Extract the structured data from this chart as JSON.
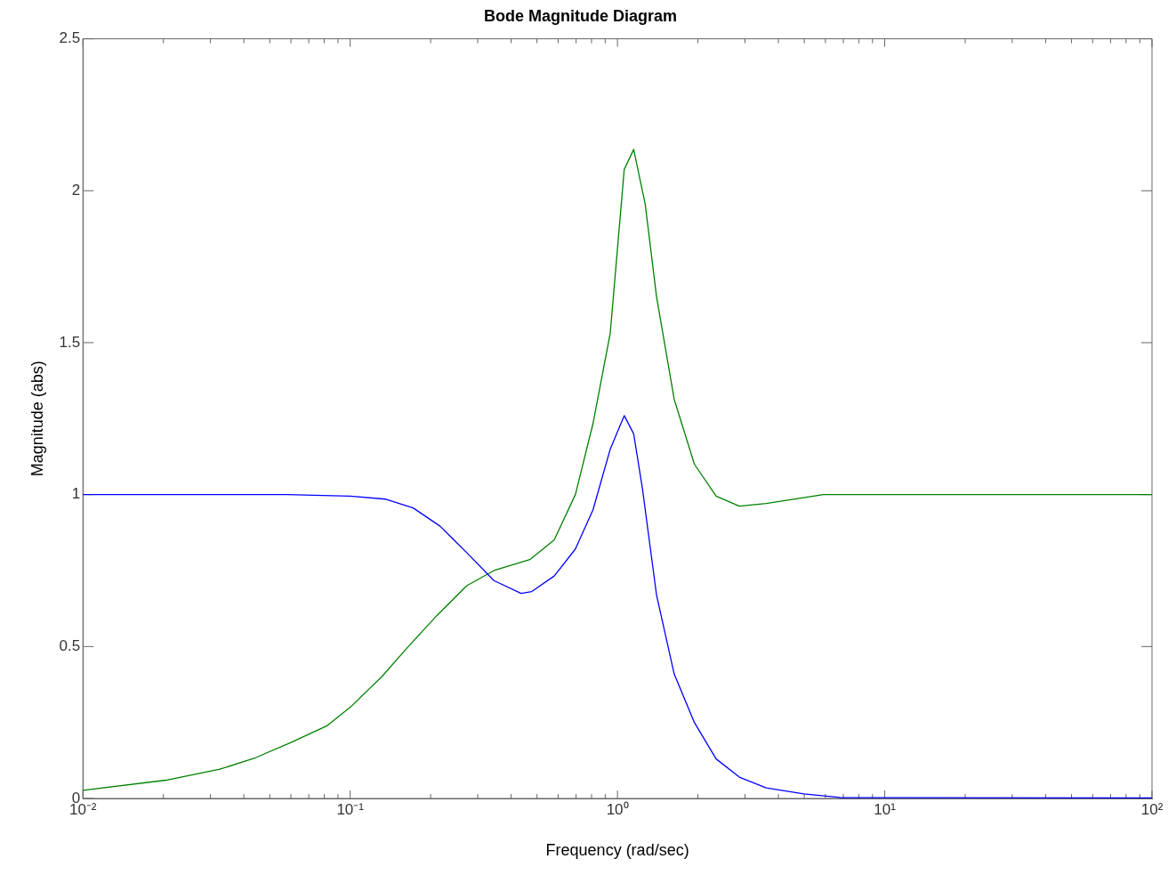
{
  "chart_data": {
    "type": "line",
    "title": "Bode Magnitude Diagram",
    "xlabel": "Frequency (rad/sec)",
    "ylabel": "Magnitude (abs)",
    "log": "x",
    "grid": false,
    "legend": false,
    "marker": "none",
    "line_style": "solid",
    "xlim": [
      0.01,
      100
    ],
    "xticks": [
      {
        "value": 0.01,
        "label": "10⁻²"
      },
      {
        "value": 0.02,
        "label": null
      },
      {
        "value": 0.03,
        "label": null
      },
      {
        "value": 0.04,
        "label": null
      },
      {
        "value": 0.05,
        "label": null
      },
      {
        "value": 0.06,
        "label": null
      },
      {
        "value": 0.07,
        "label": null
      },
      {
        "value": 0.08,
        "label": null
      },
      {
        "value": 0.09,
        "label": null
      },
      {
        "value": 0.1,
        "label": "10⁻¹"
      },
      {
        "value": 0.2,
        "label": null
      },
      {
        "value": 0.3,
        "label": null
      },
      {
        "value": 0.4,
        "label": null
      },
      {
        "value": 0.5,
        "label": null
      },
      {
        "value": 0.6,
        "label": null
      },
      {
        "value": 0.7,
        "label": null
      },
      {
        "value": 0.8,
        "label": null
      },
      {
        "value": 0.9,
        "label": null
      },
      {
        "value": 1,
        "label": "10⁰"
      },
      {
        "value": 2,
        "label": null
      },
      {
        "value": 3,
        "label": null
      },
      {
        "value": 4,
        "label": null
      },
      {
        "value": 5,
        "label": null
      },
      {
        "value": 6,
        "label": null
      },
      {
        "value": 7,
        "label": null
      },
      {
        "value": 8,
        "label": null
      },
      {
        "value": 9,
        "label": null
      },
      {
        "value": 10,
        "label": "10¹"
      },
      {
        "value": 20,
        "label": null
      },
      {
        "value": 30,
        "label": null
      },
      {
        "value": 40,
        "label": null
      },
      {
        "value": 50,
        "label": null
      },
      {
        "value": 60,
        "label": null
      },
      {
        "value": 70,
        "label": null
      },
      {
        "value": 80,
        "label": null
      },
      {
        "value": 90,
        "label": null
      },
      {
        "value": 100,
        "label": "10²"
      }
    ],
    "ylim": [
      0,
      2.5
    ],
    "yticks": [
      0,
      0.5,
      1,
      1.5,
      2,
      2.5
    ],
    "series": [
      {
        "color": "#0000ff",
        "x": [
          0.01,
          0.058,
          0.1,
          0.136,
          0.172,
          0.217,
          0.273,
          0.345,
          0.436,
          0.478,
          0.58,
          0.696,
          0.81,
          0.94,
          1.06,
          1.15,
          1.24,
          1.4,
          1.63,
          1.94,
          2.34,
          2.86,
          3.6,
          4.98,
          6.8,
          100
        ],
        "values": [
          1.0,
          1.0,
          0.995,
          0.985,
          0.956,
          0.896,
          0.809,
          0.717,
          0.675,
          0.681,
          0.732,
          0.821,
          0.95,
          1.15,
          1.26,
          1.2,
          1.02,
          0.67,
          0.41,
          0.25,
          0.13,
          0.07,
          0.035,
          0.015,
          0.003,
          0.002
        ]
      },
      {
        "color": "#008000",
        "x": [
          0.01,
          0.0204,
          0.0325,
          0.0442,
          0.0603,
          0.0822,
          0.1,
          0.131,
          0.165,
          0.21,
          0.273,
          0.345,
          0.47,
          0.58,
          0.696,
          0.81,
          0.94,
          1.06,
          1.15,
          1.27,
          1.4,
          1.63,
          1.94,
          2.34,
          2.86,
          3.6,
          5.9,
          100
        ],
        "values": [
          0.027,
          0.06,
          0.096,
          0.134,
          0.185,
          0.24,
          0.3,
          0.4,
          0.5,
          0.6,
          0.7,
          0.75,
          0.786,
          0.851,
          1.0,
          1.234,
          1.532,
          2.07,
          2.136,
          1.956,
          1.652,
          1.314,
          1.1,
          0.995,
          0.962,
          0.971,
          1.0,
          1.0
        ]
      }
    ]
  }
}
